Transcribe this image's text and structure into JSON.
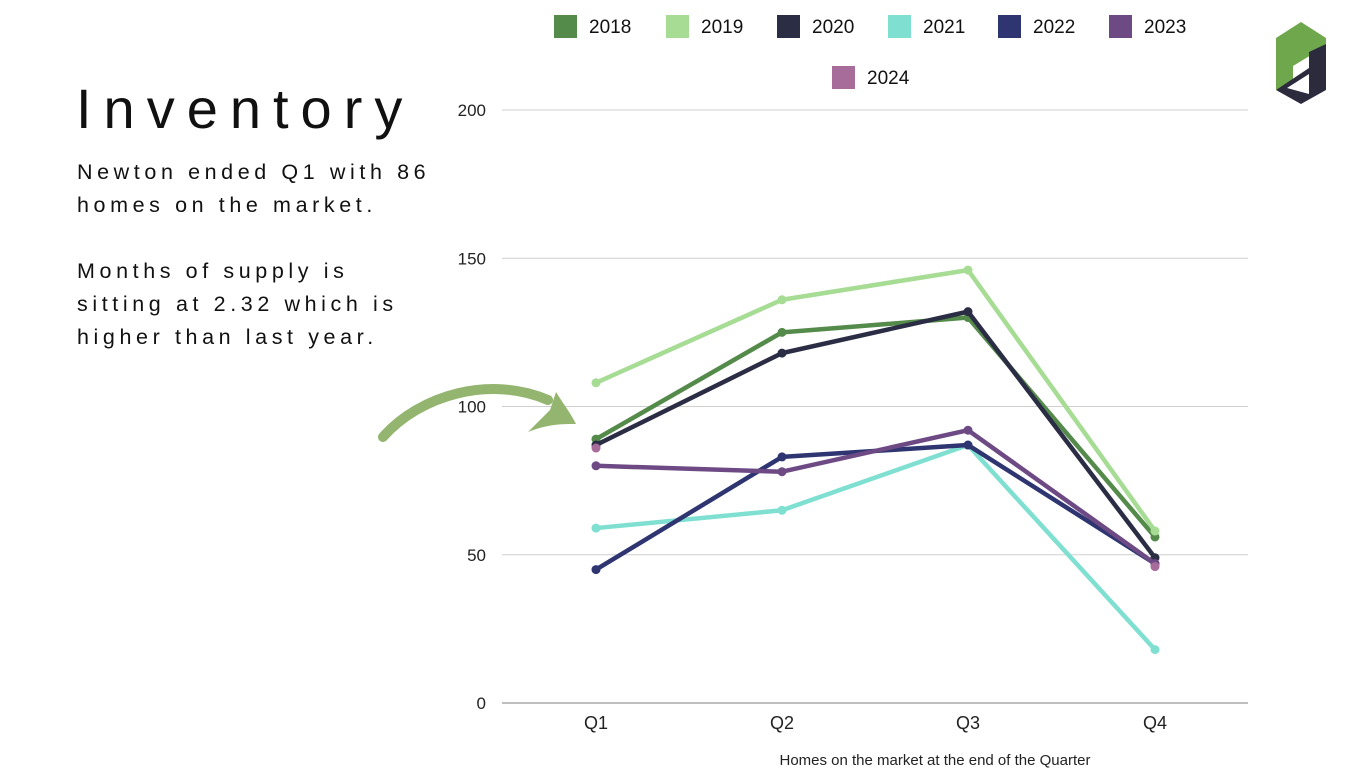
{
  "slide": {
    "title": "Inventory",
    "paragraphs": [
      "Newton ended Q1 with 86 homes on the market.",
      "Months of supply is sitting at 2.32 which is higher than last year."
    ]
  },
  "logo": {
    "colors": [
      "#6fa84c",
      "#2b2b3d"
    ]
  },
  "chart_data": {
    "type": "line",
    "categories": [
      "Q1",
      "Q2",
      "Q3",
      "Q4"
    ],
    "ylim": [
      0,
      200
    ],
    "yticks": [
      0,
      50,
      100,
      150,
      200
    ],
    "xlabel": "Homes on the market at the end of the Quarter",
    "ylabel": "",
    "grid": true,
    "legend_position": "top",
    "series": [
      {
        "name": "2018",
        "color": "#548a4a",
        "values": [
          89,
          125,
          130,
          56
        ]
      },
      {
        "name": "2019",
        "color": "#a6dc94",
        "values": [
          108,
          136,
          146,
          58
        ]
      },
      {
        "name": "2020",
        "color": "#2b2d45",
        "values": [
          87,
          118,
          132,
          49
        ]
      },
      {
        "name": "2021",
        "color": "#7fe0d2",
        "values": [
          59,
          65,
          87,
          18
        ]
      },
      {
        "name": "2022",
        "color": "#2e3570",
        "values": [
          45,
          83,
          87,
          47
        ]
      },
      {
        "name": "2023",
        "color": "#6e4a85",
        "values": [
          80,
          78,
          92,
          47
        ]
      },
      {
        "name": "2024",
        "color": "#a86c9a",
        "values": [
          86,
          null,
          null,
          46
        ]
      }
    ]
  }
}
